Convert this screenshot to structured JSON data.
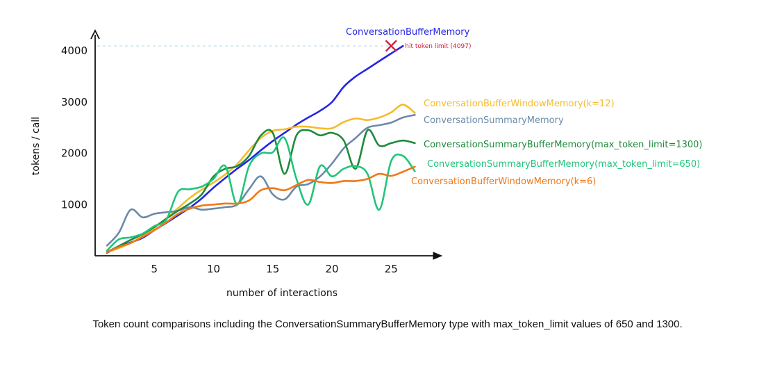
{
  "chart_data": {
    "type": "line",
    "xlabel": "number of interactions",
    "ylabel": "tokens / call",
    "x_ticks": [
      5,
      10,
      15,
      20,
      25
    ],
    "y_ticks": [
      1000,
      2000,
      3000,
      4000
    ],
    "xlim": [
      0,
      28
    ],
    "ylim": [
      0,
      4300
    ],
    "grid": false,
    "legend": "inline labels to the right of each line",
    "series": [
      {
        "name": "ConversationBufferMemory",
        "color": "#2525e6",
        "x": [
          1,
          2,
          3,
          4,
          5,
          6,
          7,
          8,
          9,
          10,
          11,
          12,
          13,
          14,
          15,
          16,
          17,
          18,
          19,
          20,
          21,
          22,
          23,
          24,
          25,
          26
        ],
        "y": [
          60,
          170,
          260,
          350,
          500,
          640,
          790,
          940,
          1120,
          1330,
          1520,
          1700,
          1870,
          2060,
          2240,
          2400,
          2560,
          2700,
          2830,
          3000,
          3300,
          3500,
          3650,
          3800,
          3950,
          4097
        ]
      },
      {
        "name": "ConversationBufferWindowMemory(k=12)",
        "color": "#f5bc2a",
        "x": [
          1,
          2,
          3,
          4,
          5,
          6,
          7,
          8,
          9,
          10,
          11,
          12,
          13,
          14,
          15,
          16,
          17,
          18,
          19,
          20,
          21,
          22,
          23,
          24,
          25,
          26,
          27
        ],
        "y": [
          70,
          150,
          250,
          380,
          550,
          730,
          930,
          1130,
          1290,
          1430,
          1590,
          1790,
          2060,
          2300,
          2440,
          2470,
          2520,
          2520,
          2490,
          2490,
          2610,
          2680,
          2650,
          2700,
          2800,
          2950,
          2790
        ]
      },
      {
        "name": "ConversationSummaryMemory",
        "color": "#6b8aa6",
        "x": [
          1,
          2,
          3,
          4,
          5,
          6,
          7,
          8,
          9,
          10,
          11,
          12,
          13,
          14,
          15,
          16,
          17,
          18,
          19,
          20,
          21,
          22,
          23,
          24,
          25,
          26,
          27
        ],
        "y": [
          200,
          450,
          900,
          750,
          820,
          850,
          880,
          950,
          900,
          920,
          950,
          1000,
          1300,
          1550,
          1200,
          1100,
          1350,
          1400,
          1550,
          1800,
          2100,
          2300,
          2500,
          2550,
          2600,
          2700,
          2750
        ]
      },
      {
        "name": "ConversationSummaryBufferMemory(max_token_limit=1300)",
        "color": "#1f8a3b",
        "x": [
          1,
          2,
          3,
          4,
          5,
          6,
          7,
          8,
          9,
          10,
          11,
          12,
          13,
          14,
          15,
          16,
          17,
          18,
          19,
          20,
          21,
          22,
          23,
          24,
          25,
          26,
          27
        ],
        "y": [
          70,
          190,
          310,
          420,
          560,
          720,
          880,
          1020,
          1200,
          1550,
          1700,
          1750,
          1950,
          2350,
          2400,
          1600,
          2350,
          2450,
          2350,
          2400,
          2250,
          1700,
          2450,
          2150,
          2200,
          2250,
          2200
        ]
      },
      {
        "name": "ConversationSummaryBufferMemory(max_token_limit=650)",
        "color": "#22c47b",
        "x": [
          1,
          2,
          3,
          4,
          5,
          6,
          7,
          8,
          9,
          10,
          11,
          12,
          13,
          14,
          15,
          16,
          17,
          18,
          19,
          20,
          21,
          22,
          23,
          24,
          25,
          26,
          27
        ],
        "y": [
          100,
          320,
          360,
          430,
          580,
          700,
          1250,
          1300,
          1350,
          1500,
          1750,
          1000,
          1750,
          2000,
          2020,
          2300,
          1500,
          1000,
          1750,
          1550,
          1700,
          1750,
          1600,
          900,
          1850,
          1950,
          1650
        ]
      },
      {
        "name": "ConversationBufferWindowMemory(k=6)",
        "color": "#f07818",
        "x": [
          1,
          2,
          3,
          4,
          5,
          6,
          7,
          8,
          9,
          10,
          11,
          12,
          13,
          14,
          15,
          16,
          17,
          18,
          19,
          20,
          21,
          22,
          23,
          24,
          25,
          26,
          27
        ],
        "y": [
          70,
          170,
          250,
          370,
          500,
          650,
          820,
          920,
          980,
          1000,
          1020,
          1020,
          1080,
          1280,
          1320,
          1280,
          1380,
          1480,
          1440,
          1420,
          1460,
          1460,
          1500,
          1600,
          1560,
          1640,
          1740
        ]
      }
    ],
    "annotations": [
      {
        "text": "hit token limit (4097)",
        "x": 25,
        "y": 4097,
        "marker": "x",
        "color": "#d11a3a"
      }
    ],
    "reference_line": {
      "y": 4097,
      "style": "dashed",
      "color": "#b9dbea"
    }
  },
  "caption": "Token count comparisons including the ConversationSummaryBufferMemory type with max_token_limit values of 650 and 1300."
}
